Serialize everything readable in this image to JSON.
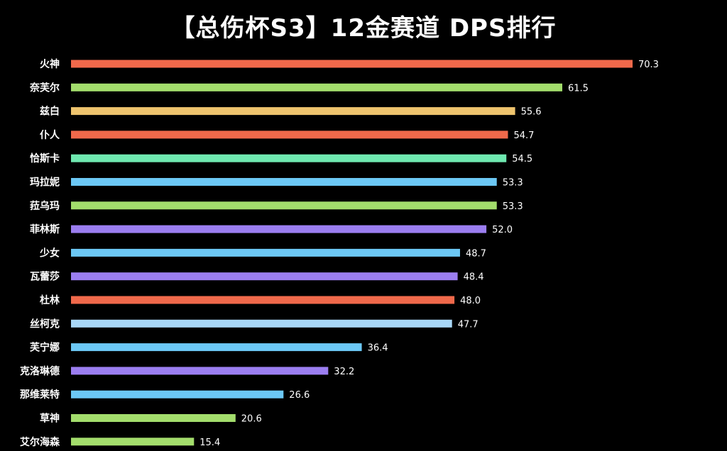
{
  "chart_data": {
    "type": "bar",
    "orientation": "horizontal",
    "title": "【总伤杯S3】12金赛道 DPS排行",
    "xlabel": "",
    "ylabel": "",
    "xlim": [
      0,
      76
    ],
    "grid": false,
    "legend": "none",
    "categories": [
      "火神",
      "奈芙尔",
      "兹白",
      "仆人",
      "恰斯卡",
      "玛拉妮",
      "菈乌玛",
      "菲林斯",
      "少女",
      "瓦蕾莎",
      "杜林",
      "丝柯克",
      "芙宁娜",
      "克洛琳德",
      "那维莱特",
      "草神",
      "艾尔海森"
    ],
    "values": [
      70.3,
      61.5,
      55.6,
      54.7,
      54.5,
      53.3,
      53.3,
      52.0,
      48.7,
      48.4,
      48.0,
      47.7,
      36.4,
      32.2,
      26.6,
      20.6,
      15.4
    ],
    "value_labels": [
      "70.3",
      "61.5",
      "55.6",
      "54.7",
      "54.5",
      "53.3",
      "53.3",
      "52.0",
      "48.7",
      "48.4",
      "48.0",
      "47.7",
      "36.4",
      "32.2",
      "26.6",
      "20.6",
      "15.4"
    ],
    "bar_colors": [
      "#f0694b",
      "#a3dd6c",
      "#eec46e",
      "#f0694b",
      "#6fe8b0",
      "#6cc8f5",
      "#a3dd6c",
      "#9b7ef0",
      "#6cc8f5",
      "#9b7ef0",
      "#f0694b",
      "#a9d8f8",
      "#6cc8f5",
      "#9b7ef0",
      "#6cc8f5",
      "#a3dd6c",
      "#a3dd6c"
    ]
  },
  "colors": {
    "background": "#000000",
    "text": "#ffffff"
  }
}
